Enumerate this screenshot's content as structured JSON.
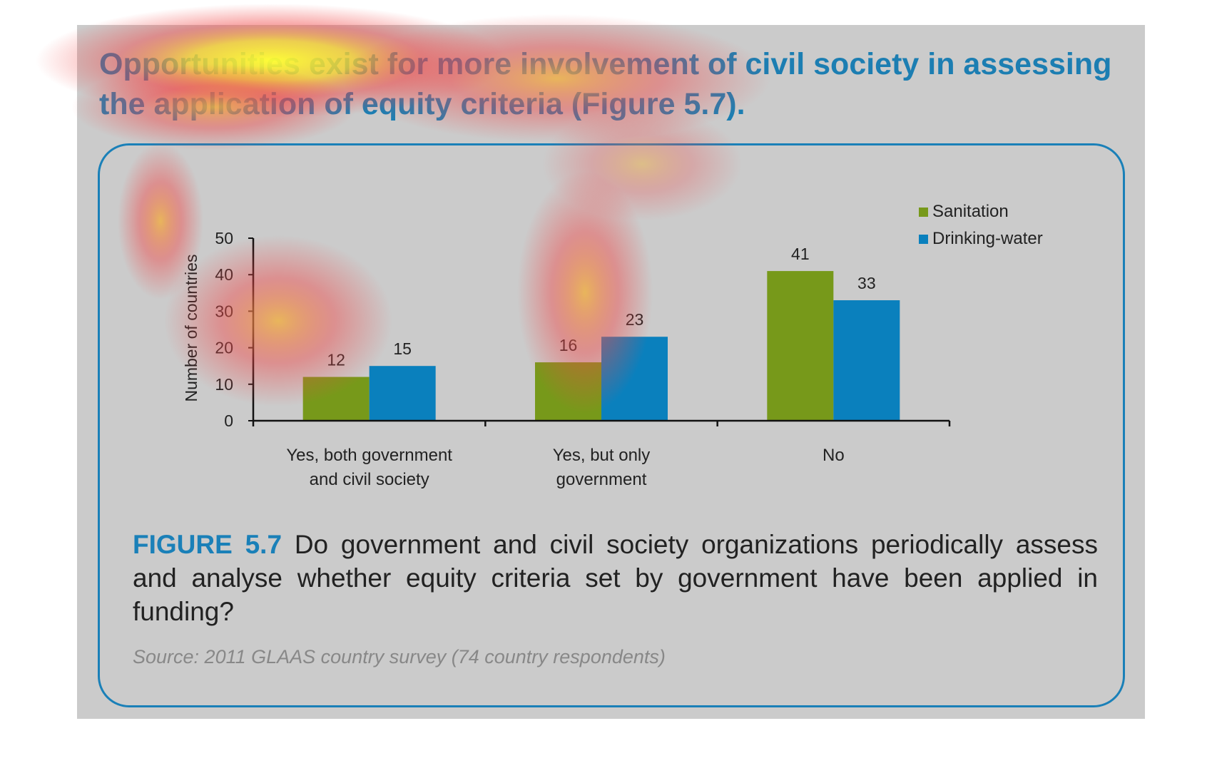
{
  "heading": "Opportunities exist for more involvement of civil society in assessing the application of equity criteria (Figure 5.7).",
  "figure_label": "FIGURE 5.7",
  "figure_caption": "Do government and civil society organizations periodically assess and analyse whether equity criteria set by government have been applied in funding?",
  "source": "Source: 2011 GLAAS country survey (74 country respondents)",
  "colors": {
    "sanitation": "#77991a",
    "drinking_water": "#0a80bd",
    "accent": "#1a80b8"
  },
  "chart_data": {
    "type": "bar",
    "categories": [
      "Yes, both government and civil society",
      "Yes, but only government",
      "No"
    ],
    "category_lines": [
      [
        "Yes, both government",
        "and civil society"
      ],
      [
        "Yes, but only",
        "government"
      ],
      [
        "No"
      ]
    ],
    "series": [
      {
        "name": "Sanitation",
        "values": [
          12,
          16,
          41
        ]
      },
      {
        "name": "Drinking-water",
        "values": [
          15,
          23,
          33
        ]
      }
    ],
    "ylabel": "Number of countries",
    "xlabel": "",
    "ylim": [
      0,
      50
    ],
    "yticks": [
      0,
      10,
      20,
      30,
      40,
      50
    ],
    "legend": "top-right",
    "grid": false
  }
}
